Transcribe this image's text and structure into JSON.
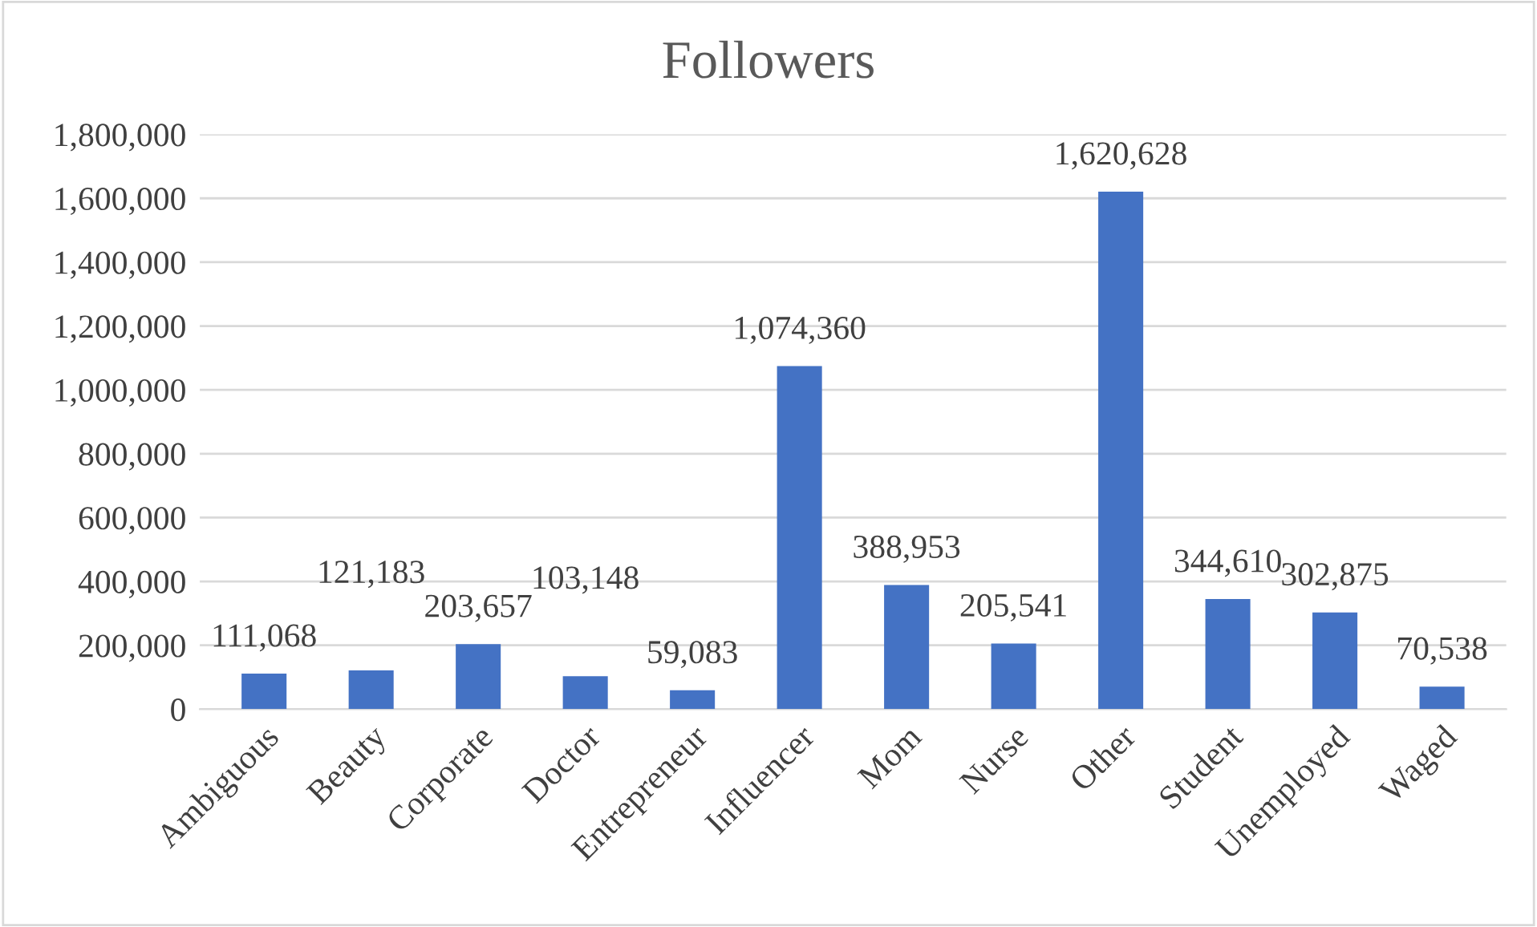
{
  "chart_data": {
    "type": "bar",
    "title": "Followers",
    "categories": [
      "Ambiguous",
      "Beauty",
      "Corporate",
      "Doctor",
      "Entrepreneur",
      "Influencer",
      "Mom",
      "Nurse",
      "Other",
      "Student",
      "Unemployed",
      "Waged"
    ],
    "values": [
      111068,
      121183,
      203657,
      103148,
      59083,
      1074360,
      388953,
      205541,
      1620628,
      344610,
      302875,
      70538
    ],
    "value_labels": [
      "111,068",
      "121,183",
      "203,657",
      "103,148",
      "59,083",
      "1,074,360",
      "388,953",
      "205,541",
      "1,620,628",
      "344,610",
      "302,875",
      "70,538"
    ],
    "color": "#4472c4",
    "ylim": [
      0,
      1800000
    ],
    "yticks": [
      0,
      {
        "value": 200000,
        "label": "200,000"
      },
      {
        "value": 400000,
        "label": "400,000"
      },
      {
        "value": 600000,
        "label": "600,000"
      },
      {
        "value": 800000,
        "label": "800,000"
      },
      {
        "value": 1000000,
        "label": "1,000,000"
      },
      {
        "value": 1200000,
        "label": "1,200,000"
      },
      {
        "value": 1400000,
        "label": "1,400,000"
      },
      {
        "value": 1600000,
        "label": "1,600,000"
      },
      {
        "value": 1800000,
        "label": "1,800,000"
      }
    ],
    "grid": "y"
  }
}
